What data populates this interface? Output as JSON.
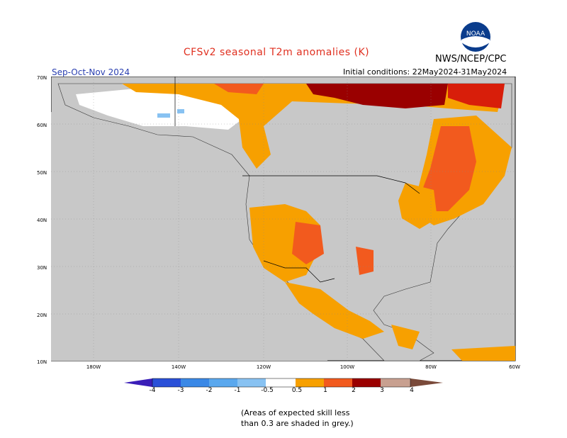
{
  "header": {
    "title": "CFSv2 seasonal T2m anomalies (K)",
    "org": "NWS/NCEP/CPC",
    "season": "Sep-Oct-Nov 2024",
    "initial_conditions": "Initial conditions: 22May2024-31May2024",
    "logo_text": "NOAA"
  },
  "map": {
    "lat_labels": [
      "70N",
      "60N",
      "50N",
      "40N",
      "30N",
      "20N",
      "10N"
    ],
    "lon_labels": [
      "180W",
      "140W",
      "120W",
      "100W",
      "80W",
      "60W"
    ],
    "land_color": "#c8c8c8",
    "ocean_color": "#ffffff",
    "highlight_regions": [
      "Northern Canada",
      "Eastern Canada",
      "Great Lakes",
      "Southwest US",
      "Mexico",
      "Central America"
    ]
  },
  "colorbar": {
    "ticks": [
      "-4",
      "-3",
      "-2",
      "-1",
      "-0.5",
      "0.5",
      "1",
      "2",
      "3",
      "4"
    ],
    "colors": [
      "#3a1eb8",
      "#2a50d8",
      "#3a88e6",
      "#5aa8ee",
      "#88c2f2",
      "#ffffff",
      "#f7a000",
      "#f25a1e",
      "#d81e0a",
      "#9a0000",
      "#c8a090",
      "#7a4a3a"
    ]
  },
  "legend_note": {
    "line1": "(Areas of expected skill less",
    "line2": "than 0.3 are shaded in grey.)"
  }
}
